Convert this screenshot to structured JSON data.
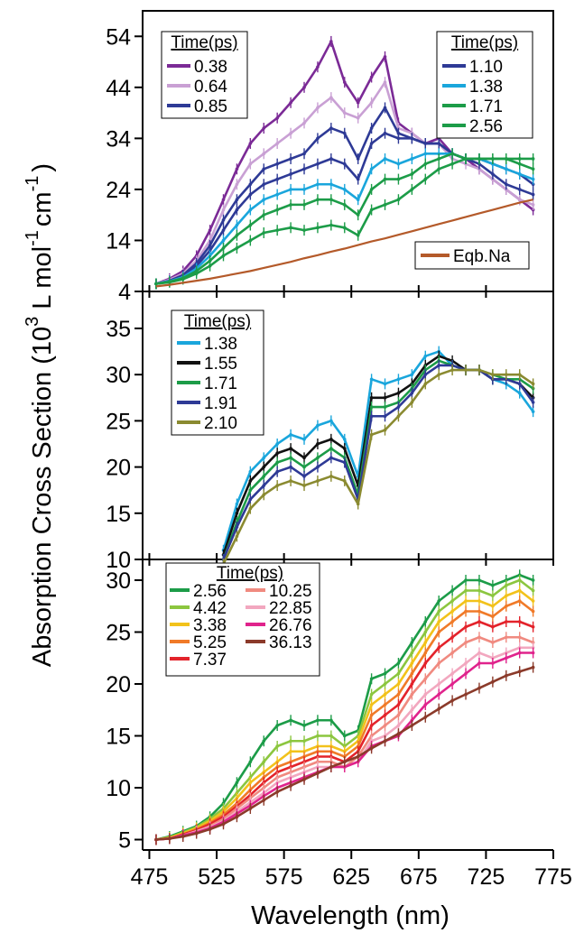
{
  "figure": {
    "ylabel_main": "Absorption Cross Section (10",
    "ylabel_exp3": "3",
    "ylabel_unit1": " L mol",
    "ylabel_exp1": "-1",
    "ylabel_unit2": "cm",
    "ylabel_exp2": "-1",
    "ylabel_close": ")",
    "xlabel": "Wavelength (nm)",
    "x_ticks": [
      "475",
      "525",
      "575",
      "625",
      "675",
      "725",
      "775"
    ],
    "colors": {
      "purple": "#7b2a96",
      "lilac": "#c9a0d4",
      "navy": "#2e3a96",
      "cyan": "#1aa6dc",
      "green": "#1c9c48",
      "brown": "#b45a2a",
      "black": "#111111",
      "olive": "#8a8a30",
      "lime": "#8cc63f",
      "yellow": "#f2c21b",
      "orange": "#f07a28",
      "red": "#e3232b",
      "salmon": "#f08a80",
      "pink": "#f2a7bf",
      "magenta": "#e0238c",
      "darkbrown": "#8b3a2a"
    }
  },
  "chart_data": [
    {
      "type": "line",
      "panel": "top",
      "ylim": [
        4,
        59
      ],
      "xlim": [
        470,
        775
      ],
      "y_ticks": [
        "4",
        "14",
        "24",
        "34",
        "44",
        "54"
      ],
      "legends": [
        {
          "title": "Time(ps)",
          "entries": [
            "0.38",
            "0.64",
            "0.85"
          ],
          "placement": "top-left"
        },
        {
          "title": "Time(ps)",
          "entries": [
            "1.10",
            "1.38",
            "1.71",
            "2.56"
          ],
          "placement": "top-right"
        },
        {
          "title": "",
          "entries": [
            "Eqb.Na"
          ],
          "placement": "bottom-right"
        }
      ],
      "x": [
        480,
        490,
        500,
        510,
        520,
        530,
        540,
        550,
        560,
        570,
        580,
        590,
        600,
        610,
        620,
        630,
        640,
        650,
        660,
        670,
        680,
        690,
        700,
        710,
        720,
        730,
        740,
        750,
        760
      ],
      "series": [
        {
          "name": "0.38",
          "color": "purple",
          "values": [
            5.5,
            6.5,
            8,
            11,
            16,
            22,
            28,
            33,
            36,
            38,
            41,
            44,
            48,
            53,
            45,
            41,
            46,
            50,
            37,
            35,
            33,
            34,
            31,
            30,
            28,
            26,
            24,
            22,
            20
          ]
        },
        {
          "name": "0.64",
          "color": "lilac",
          "values": [
            5.5,
            6.3,
            7.5,
            10,
            14,
            20,
            25,
            29,
            31,
            33,
            35,
            37,
            40,
            42,
            39,
            38,
            41,
            45,
            36,
            35,
            33,
            33,
            30,
            29,
            28,
            26,
            24,
            22,
            21
          ]
        },
        {
          "name": "0.85",
          "color": "navy",
          "values": [
            5.5,
            6.1,
            7.2,
            9.5,
            13,
            18,
            22,
            25,
            28,
            29,
            30,
            31,
            34,
            36,
            35,
            30,
            36,
            40,
            35,
            34,
            33,
            33,
            31,
            30,
            29,
            27,
            25,
            24,
            23
          ]
        },
        {
          "name": "1.10",
          "color": "navy",
          "values": [
            5.5,
            6.0,
            7.0,
            9,
            12,
            16,
            20,
            23,
            25,
            26,
            27,
            28,
            29,
            30,
            29,
            26,
            33,
            35,
            34,
            34,
            33,
            33,
            31,
            30,
            30,
            29,
            28,
            27,
            25
          ]
        },
        {
          "name": "1.38",
          "color": "cyan",
          "values": [
            5.5,
            6.0,
            6.8,
            8.5,
            11,
            14,
            17,
            20,
            22,
            23,
            24,
            24,
            25,
            25,
            24,
            22,
            28,
            30,
            29,
            30,
            31,
            31,
            31,
            30,
            30,
            29,
            28,
            27,
            26
          ]
        },
        {
          "name": "1.71",
          "color": "green",
          "values": [
            5.5,
            5.9,
            6.6,
            8,
            10,
            12.5,
            15,
            17,
            19,
            20,
            21,
            21,
            22,
            22,
            21,
            19,
            24,
            26,
            26,
            27,
            29,
            30,
            31,
            30,
            30,
            30,
            30,
            29,
            28
          ]
        },
        {
          "name": "2.56",
          "color": "green",
          "values": [
            5.5,
            5.8,
            6.4,
            7.5,
            9,
            11,
            12.5,
            14,
            15.5,
            16,
            16.5,
            16,
            16.5,
            17,
            16.5,
            15,
            20,
            21,
            22,
            24,
            26,
            28,
            29,
            30,
            30,
            30,
            30,
            30,
            30
          ]
        },
        {
          "name": "Eqb.Na",
          "color": "brown",
          "values": [
            5.0,
            5.3,
            5.7,
            6.1,
            6.5,
            7.0,
            7.5,
            8.0,
            8.6,
            9.2,
            9.8,
            10.5,
            11.1,
            11.8,
            12.4,
            13.1,
            13.8,
            14.4,
            15.1,
            15.8,
            16.5,
            17.2,
            17.9,
            18.6,
            19.3,
            20.0,
            20.7,
            21.4,
            22.0
          ]
        }
      ]
    },
    {
      "type": "line",
      "panel": "middle",
      "ylim": [
        10,
        39
      ],
      "xlim": [
        470,
        775
      ],
      "y_ticks": [
        "10",
        "15",
        "20",
        "25",
        "30",
        "35"
      ],
      "legends": [
        {
          "title": "Time(ps)",
          "entries": [
            "1.38",
            "1.55",
            "1.71",
            "1.91",
            "2.10"
          ],
          "placement": "top-left"
        }
      ],
      "x": [
        530,
        540,
        550,
        560,
        570,
        580,
        590,
        600,
        610,
        620,
        630,
        640,
        650,
        660,
        670,
        680,
        690,
        700,
        710,
        720,
        730,
        740,
        750,
        760
      ],
      "series": [
        {
          "name": "1.38",
          "color": "cyan",
          "values": [
            11,
            16,
            19.5,
            21,
            22.5,
            23.5,
            23,
            24.5,
            25,
            23,
            19,
            29.5,
            29,
            29.5,
            30,
            32,
            32.5,
            31,
            30.5,
            30.5,
            29.5,
            29,
            28,
            26
          ]
        },
        {
          "name": "1.55",
          "color": "black",
          "values": [
            10.5,
            15,
            18.5,
            20,
            21.5,
            22,
            21,
            22.5,
            23,
            22,
            18,
            27.5,
            27.5,
            28,
            29,
            31,
            32,
            31.5,
            30.5,
            30.5,
            29.5,
            29.5,
            29,
            27.5
          ]
        },
        {
          "name": "1.71",
          "color": "green",
          "values": [
            10,
            14,
            17.5,
            19,
            20.5,
            21,
            20,
            21,
            22,
            21,
            17,
            26.5,
            26.5,
            27,
            28.5,
            30.5,
            31.5,
            31,
            30.5,
            30.5,
            30,
            29.5,
            29.5,
            28.5
          ]
        },
        {
          "name": "1.91",
          "color": "navy",
          "values": [
            10,
            13.5,
            16.5,
            18,
            19.5,
            20,
            19,
            20,
            21,
            20.5,
            16.5,
            25.5,
            25.5,
            26.5,
            28,
            30,
            31,
            31,
            30.5,
            30.5,
            29.5,
            29.5,
            29,
            27
          ]
        },
        {
          "name": "2.10",
          "color": "olive",
          "values": [
            9.5,
            12.5,
            15.5,
            17,
            18,
            18.5,
            18,
            18.5,
            19,
            18.5,
            16,
            23.5,
            24,
            25.5,
            27,
            29,
            30,
            30.5,
            30.5,
            30.5,
            30,
            30,
            30,
            29
          ]
        }
      ]
    },
    {
      "type": "line",
      "panel": "bottom",
      "ylim": [
        4,
        32
      ],
      "xlim": [
        470,
        775
      ],
      "y_ticks": [
        "5",
        "10",
        "15",
        "20",
        "25",
        "30"
      ],
      "legends": [
        {
          "title": "Time(ps)",
          "entries": [
            "2.56",
            "4.42",
            "3.38",
            "5.25",
            "7.37",
            "10.25",
            "22.85",
            "26.76",
            "36.13"
          ],
          "placement": "top-left"
        }
      ],
      "x": [
        480,
        490,
        500,
        510,
        520,
        530,
        540,
        550,
        560,
        570,
        580,
        590,
        600,
        610,
        620,
        630,
        640,
        650,
        660,
        670,
        680,
        690,
        700,
        710,
        720,
        730,
        740,
        750,
        760
      ],
      "series": [
        {
          "name": "2.56",
          "color": "green",
          "values": [
            5,
            5.3,
            5.8,
            6.3,
            7.2,
            8.5,
            10.5,
            12.5,
            14.5,
            16,
            16.5,
            16,
            16.5,
            16.5,
            15,
            15.5,
            20.5,
            21,
            22,
            24,
            26,
            28,
            29,
            30,
            30,
            29.5,
            30,
            30.5,
            30
          ]
        },
        {
          "name": "4.42",
          "color": "lime",
          "values": [
            5,
            5.2,
            5.7,
            6.2,
            7,
            8,
            9.5,
            11,
            12.5,
            14,
            14.5,
            14.5,
            15,
            15,
            14,
            15,
            19,
            20,
            21,
            23,
            25,
            27,
            28,
            29,
            29,
            28.5,
            29.5,
            30,
            29
          ]
        },
        {
          "name": "3.38",
          "color": "yellow",
          "values": [
            5,
            5.2,
            5.6,
            6.1,
            6.8,
            7.7,
            9,
            10.5,
            11.5,
            12.5,
            13.5,
            13.5,
            14,
            14,
            13.5,
            14.5,
            18,
            19,
            20,
            22,
            24,
            26,
            27,
            28,
            28,
            27.5,
            28.5,
            29,
            28
          ]
        },
        {
          "name": "5.25",
          "color": "orange",
          "values": [
            5,
            5.1,
            5.5,
            6,
            6.6,
            7.4,
            8.5,
            9.8,
            11,
            12,
            12.5,
            13,
            13.5,
            13.5,
            13,
            14,
            17,
            18,
            19,
            21,
            23,
            25,
            26,
            27,
            27,
            26.5,
            27.5,
            28,
            27
          ]
        },
        {
          "name": "7.37",
          "color": "red",
          "values": [
            5,
            5.1,
            5.5,
            5.9,
            6.5,
            7.2,
            8.2,
            9.3,
            10.5,
            11.5,
            12,
            12.5,
            13,
            13,
            12.5,
            13.5,
            16,
            17,
            18,
            20,
            22,
            23.5,
            24.5,
            25.5,
            26,
            25.5,
            26,
            26,
            25.5
          ]
        },
        {
          "name": "10.25",
          "color": "salmon",
          "values": [
            5,
            5.1,
            5.4,
            5.8,
            6.3,
            7,
            8,
            9,
            10,
            11,
            11.5,
            12,
            12.5,
            12.5,
            12,
            13,
            15,
            16,
            17,
            19,
            20.5,
            22,
            23,
            24,
            24.5,
            24,
            24.5,
            24.5,
            24
          ]
        },
        {
          "name": "22.85",
          "color": "pink",
          "values": [
            5,
            5.1,
            5.4,
            5.8,
            6.2,
            6.8,
            7.7,
            8.6,
            9.5,
            10.5,
            11,
            11.5,
            12,
            12,
            12,
            12.5,
            14.5,
            15,
            16,
            17.5,
            19,
            20,
            21,
            22,
            23,
            22.5,
            23,
            23.5,
            23.5
          ]
        },
        {
          "name": "26.76",
          "color": "magenta",
          "values": [
            5,
            5.1,
            5.4,
            5.7,
            6.1,
            6.7,
            7.5,
            8.3,
            9.2,
            10,
            10.5,
            11,
            11.5,
            12,
            12,
            12.5,
            14,
            14.5,
            15,
            16.5,
            18,
            19,
            20,
            21,
            22,
            22,
            22.5,
            23,
            23
          ]
        },
        {
          "name": "36.13",
          "color": "darkbrown",
          "values": [
            5,
            5.1,
            5.3,
            5.6,
            6,
            6.5,
            7.2,
            8,
            8.8,
            9.6,
            10.2,
            10.8,
            11.4,
            12,
            12.5,
            13,
            13.8,
            14.5,
            15.2,
            16,
            16.8,
            17.6,
            18.4,
            19,
            19.6,
            20.2,
            20.8,
            21.2,
            21.6
          ]
        }
      ]
    }
  ]
}
